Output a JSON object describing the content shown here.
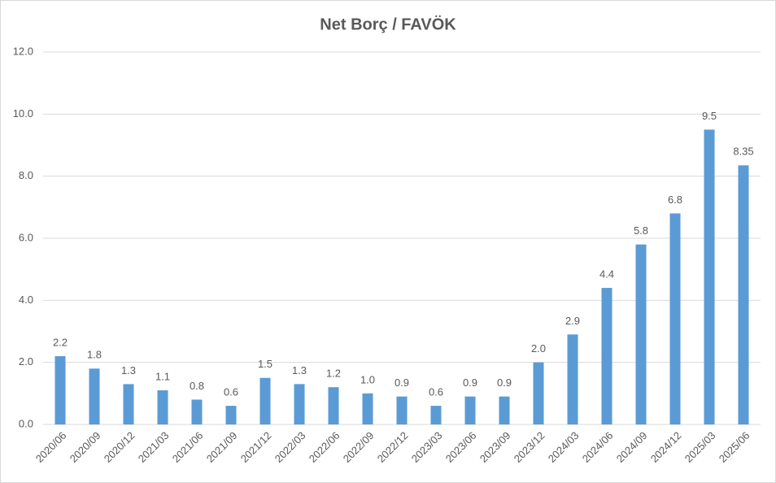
{
  "chart_data": {
    "type": "bar",
    "title": "Net Borç / FAVÖK",
    "categories": [
      "2020/06",
      "2020/09",
      "2020/12",
      "2021/03",
      "2021/06",
      "2021/09",
      "2021/12",
      "2022/03",
      "2022/06",
      "2022/09",
      "2022/12",
      "2023/03",
      "2023/06",
      "2023/09",
      "2023/12",
      "2024/03",
      "2024/06",
      "2024/09",
      "2024/12",
      "2025/03",
      "2025/06"
    ],
    "values": [
      2.2,
      1.8,
      1.3,
      1.1,
      0.8,
      0.6,
      1.5,
      1.3,
      1.2,
      1.0,
      0.9,
      0.6,
      0.9,
      0.9,
      2.0,
      2.9,
      4.4,
      5.8,
      6.8,
      9.5,
      8.35
    ],
    "value_labels": [
      "2.2",
      "1.8",
      "1.3",
      "1.1",
      "0.8",
      "0.6",
      "1.5",
      "1.3",
      "1.2",
      "1.0",
      "0.9",
      "0.6",
      "0.9",
      "0.9",
      "2.0",
      "2.9",
      "4.4",
      "5.8",
      "6.8",
      "9.5",
      "8.35"
    ],
    "color": "#5b9bd5",
    "ylim": [
      0,
      12
    ],
    "yticks": [
      {
        "value": 0,
        "label": "0.0"
      },
      {
        "value": 2,
        "label": "2.0"
      },
      {
        "value": 4,
        "label": "4.0"
      },
      {
        "value": 6,
        "label": "6.0"
      },
      {
        "value": 8,
        "label": "8.0"
      },
      {
        "value": 10,
        "label": "10.0"
      },
      {
        "value": 12,
        "label": "12.0"
      }
    ],
    "grid": true
  }
}
